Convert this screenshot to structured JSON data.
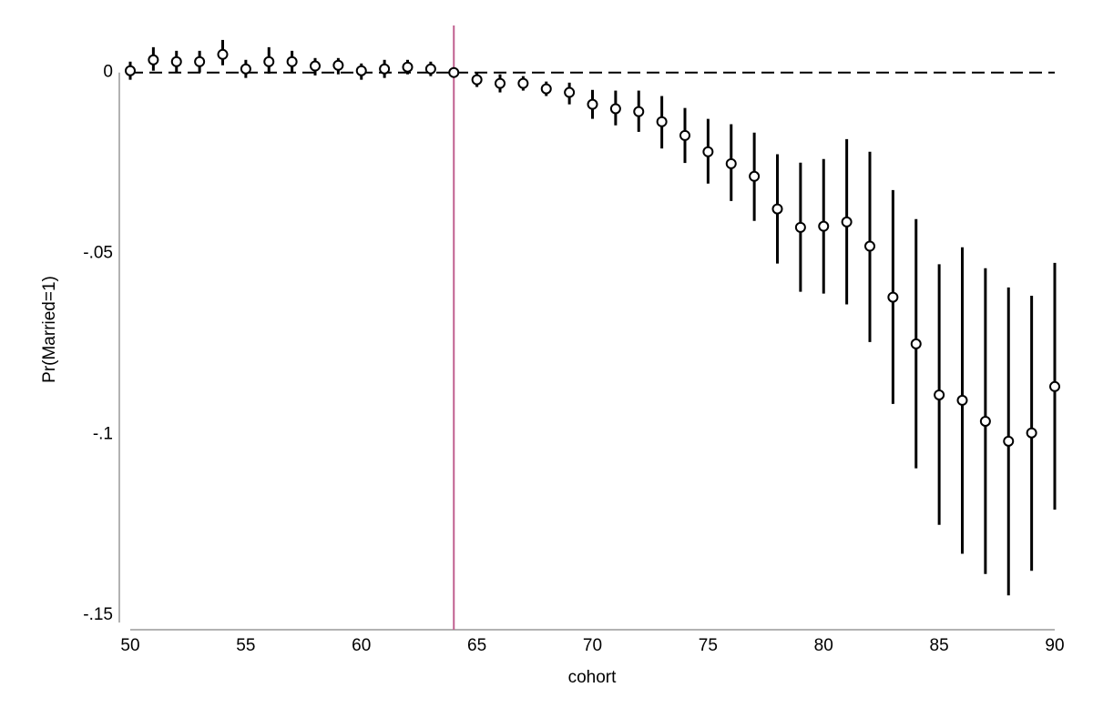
{
  "chart_data": {
    "type": "errorbar",
    "x_label": "cohort",
    "y_label": "Pr(Married=1)",
    "x": [
      50,
      51,
      52,
      53,
      54,
      55,
      56,
      57,
      58,
      59,
      60,
      61,
      62,
      63,
      64,
      65,
      66,
      67,
      68,
      69,
      70,
      71,
      72,
      73,
      74,
      75,
      76,
      77,
      78,
      79,
      80,
      81,
      82,
      83,
      84,
      85,
      86,
      87,
      88,
      89,
      90
    ],
    "values": [
      0.0005,
      0.0035,
      0.003,
      0.003,
      0.005,
      0.001,
      0.003,
      0.003,
      0.0018,
      0.002,
      0.0005,
      0.001,
      0.0015,
      0.001,
      0,
      -0.002,
      -0.003,
      -0.003,
      -0.0045,
      -0.0055,
      -0.0088,
      -0.01,
      -0.0108,
      -0.0136,
      -0.0174,
      -0.0219,
      -0.0252,
      -0.0287,
      -0.0377,
      -0.0428,
      -0.0425,
      -0.0413,
      -0.048,
      -0.0621,
      -0.075,
      -0.0891,
      -0.0906,
      -0.0964,
      -0.1019,
      -0.0996,
      -0.0868
    ],
    "ci_upper": [
      0.003,
      0.007,
      0.006,
      0.006,
      0.009,
      0.0035,
      0.007,
      0.006,
      0.004,
      0.004,
      0.0025,
      0.0035,
      0.0035,
      0.003,
      null,
      0,
      -0.0005,
      -0.001,
      -0.0025,
      -0.0028,
      -0.0048,
      -0.005,
      -0.005,
      -0.0065,
      -0.0098,
      -0.0128,
      -0.0143,
      -0.0166,
      -0.0226,
      -0.0249,
      -0.0239,
      -0.0184,
      -0.0219,
      -0.0325,
      -0.0405,
      -0.053,
      -0.0483,
      -0.0541,
      -0.0594,
      -0.0617,
      -0.0526
    ],
    "ci_lower": [
      -0.002,
      0.0005,
      0,
      0,
      0.002,
      -0.0015,
      -0.0003,
      0,
      -0.0008,
      -0.0005,
      -0.002,
      -0.0015,
      -0.0005,
      -0.001,
      null,
      -0.004,
      -0.0055,
      -0.005,
      -0.0065,
      -0.0088,
      -0.0128,
      -0.0146,
      -0.0164,
      -0.021,
      -0.025,
      -0.0307,
      -0.0355,
      -0.041,
      -0.0528,
      -0.0606,
      -0.0611,
      -0.0641,
      -0.0745,
      -0.0916,
      -0.1094,
      -0.125,
      -0.133,
      -0.1386,
      -0.1445,
      -0.1377,
      -0.1208
    ],
    "color": "#000000",
    "xlim": [
      50,
      90
    ],
    "xticks": [
      50,
      55,
      60,
      65,
      70,
      75,
      80,
      85,
      90
    ],
    "ylim": [
      -0.154,
      0.013
    ],
    "yticks": [
      {
        "value": 0,
        "label": "0"
      },
      {
        "value": -0.05,
        "label": "-.05"
      },
      {
        "value": -0.1,
        "label": "-.1"
      },
      {
        "value": -0.15,
        "label": "-.15"
      }
    ],
    "reference_x": 64,
    "reference_x_color": "#c0608f",
    "reference_y": 0
  }
}
